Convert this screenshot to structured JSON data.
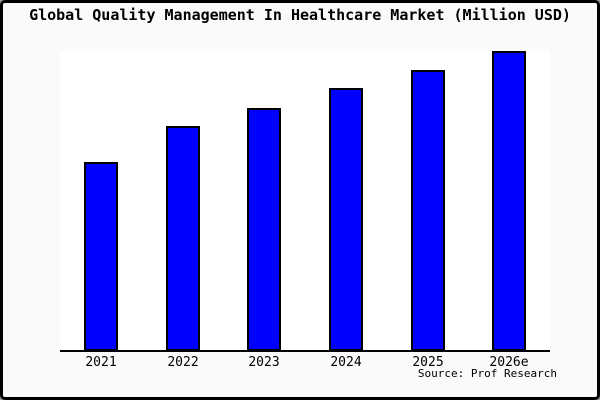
{
  "title": "Global Quality Management In Healthcare Market (Million USD)",
  "source_credit": "Source: Prof Research",
  "colors": {
    "frame_background": "#fafafa",
    "plot_background": "#ffffff",
    "bar_fill": "#0000ff",
    "bar_border": "#000000",
    "axis": "#000000",
    "text": "#000000",
    "frame_border": "#000000"
  },
  "chart_data": {
    "type": "bar",
    "title": "Global Quality Management In Healthcare Market (Million USD)",
    "categories": [
      "2021",
      "2022",
      "2023",
      "2024",
      "2025",
      "2026e"
    ],
    "values": [
      63,
      75,
      81,
      87.5,
      93.5,
      100
    ],
    "units": "Million USD",
    "y_axis_labels_visible": false,
    "value_basis": "relative scale estimated from bar heights, max bar = 100",
    "xlabel": "",
    "ylabel": "",
    "ylim": [
      0,
      100
    ],
    "grid": false,
    "legend": false,
    "bar_color": "#0000ff",
    "bar_edge_color": "#000000"
  }
}
